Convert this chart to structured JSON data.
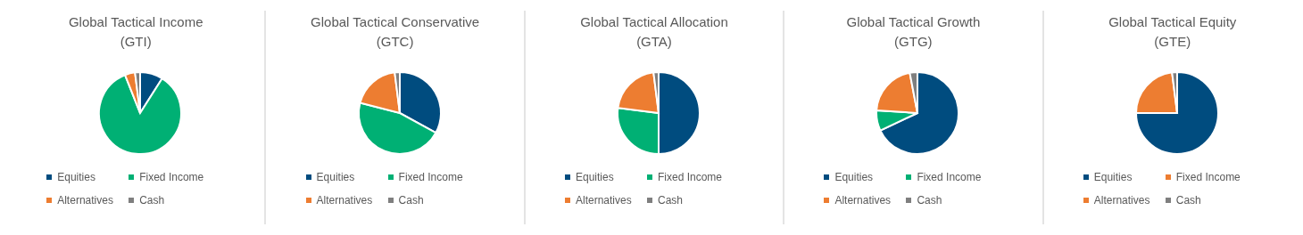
{
  "chart_data": [
    {
      "type": "pie",
      "title": "Global Tactical Income\n(GTI)",
      "categories": [
        "Equities",
        "Fixed Income",
        "Alternatives",
        "Cash"
      ],
      "values": [
        9,
        85,
        4,
        2
      ],
      "colors": [
        "#004c7f",
        "#00b074",
        "#ed7d31",
        "#7f7f7f"
      ],
      "legend": "bottom"
    },
    {
      "type": "pie",
      "title": "Global Tactical Conservative\n(GTC)",
      "categories": [
        "Equities",
        "Fixed Income",
        "Alternatives",
        "Cash"
      ],
      "values": [
        33,
        46,
        19,
        2
      ],
      "colors": [
        "#004c7f",
        "#00b074",
        "#ed7d31",
        "#7f7f7f"
      ],
      "legend": "bottom"
    },
    {
      "type": "pie",
      "title": "Global Tactical Allocation\n(GTA)",
      "categories": [
        "Equities",
        "Fixed Income",
        "Alternatives",
        "Cash"
      ],
      "values": [
        50,
        27,
        21,
        2
      ],
      "colors": [
        "#004c7f",
        "#00b074",
        "#ed7d31",
        "#7f7f7f"
      ],
      "legend": "bottom"
    },
    {
      "type": "pie",
      "title": "Global Tactical Growth\n(GTG)",
      "categories": [
        "Equities",
        "Fixed Income",
        "Alternatives",
        "Cash"
      ],
      "values": [
        68,
        8,
        21,
        3
      ],
      "colors": [
        "#004c7f",
        "#00b074",
        "#ed7d31",
        "#7f7f7f"
      ],
      "legend": "bottom"
    },
    {
      "type": "pie",
      "title": "Global Tactical Equity\n(GTE)",
      "categories": [
        "Equities",
        "Fixed Income",
        "Alternatives",
        "Cash"
      ],
      "values": [
        75,
        0,
        23,
        2
      ],
      "colors": [
        "#004c7f",
        "#ed7d31",
        "#ed7d31",
        "#7f7f7f"
      ],
      "legend": "bottom"
    }
  ]
}
